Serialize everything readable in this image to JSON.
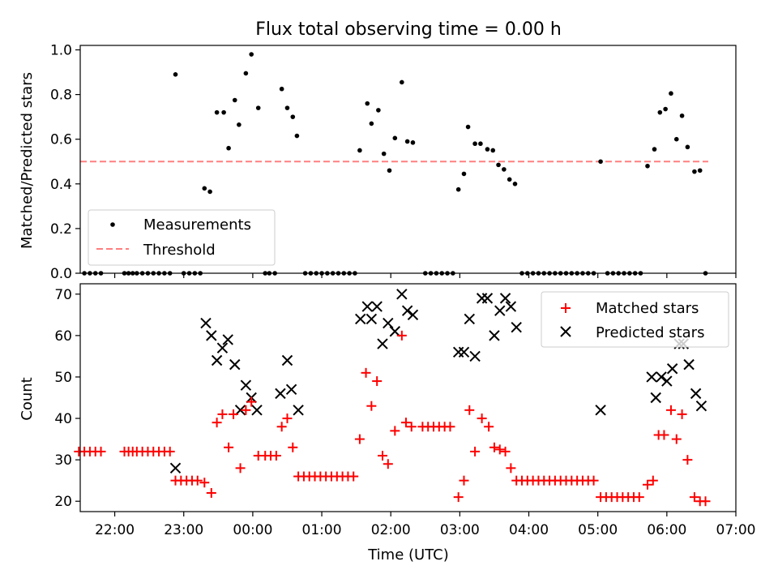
{
  "title": "Flux total observing time = 0.00 h",
  "chart_data": [
    {
      "type": "scatter",
      "ylabel": "Matched/Predicted stars",
      "ylim": [
        0,
        1.02
      ],
      "yticks": [
        "0.0",
        "0.2",
        "0.4",
        "0.6",
        "0.8",
        "1.0"
      ],
      "ytick_values": [
        0,
        0.2,
        0.4,
        0.6,
        0.8,
        1.0
      ],
      "xlim": [
        -2.5,
        7.0
      ],
      "xaxis": "hours relative to 00:00 UTC",
      "legend_position": "lower-left",
      "legend": {
        "measurements": "Measurements",
        "threshold": "Threshold"
      },
      "colors": {
        "measurements": "#000000",
        "threshold": "#ff7f7f"
      },
      "threshold": {
        "value": 0.5,
        "x_range": [
          -2.5,
          6.6
        ]
      },
      "series": [
        {
          "name": "Measurements",
          "points": [
            [
              -2.52,
              0
            ],
            [
              -2.44,
              0
            ],
            [
              -2.36,
              0
            ],
            [
              -2.28,
              0
            ],
            [
              -2.2,
              0
            ],
            [
              -1.86,
              0
            ],
            [
              -1.8,
              0
            ],
            [
              -1.74,
              0
            ],
            [
              -1.68,
              0
            ],
            [
              -1.6,
              0
            ],
            [
              -1.52,
              0
            ],
            [
              -1.44,
              0
            ],
            [
              -1.36,
              0
            ],
            [
              -1.28,
              0
            ],
            [
              -1.2,
              0
            ],
            [
              -1.12,
              0.89
            ],
            [
              -1.0,
              0
            ],
            [
              -0.92,
              0
            ],
            [
              -0.84,
              0
            ],
            [
              -0.76,
              0
            ],
            [
              -0.7,
              0.38
            ],
            [
              -0.62,
              0.365
            ],
            [
              -0.52,
              0.72
            ],
            [
              -0.42,
              0.72
            ],
            [
              -0.35,
              0.56
            ],
            [
              -0.26,
              0.775
            ],
            [
              -0.2,
              0.665
            ],
            [
              -0.1,
              0.895
            ],
            [
              -0.02,
              0.98
            ],
            [
              0.08,
              0.74
            ],
            [
              0.18,
              0
            ],
            [
              0.24,
              0
            ],
            [
              0.32,
              0
            ],
            [
              0.42,
              0.825
            ],
            [
              0.5,
              0.74
            ],
            [
              0.58,
              0.7
            ],
            [
              0.64,
              0.615
            ],
            [
              0.76,
              0
            ],
            [
              0.84,
              0
            ],
            [
              0.92,
              0
            ],
            [
              1.0,
              0
            ],
            [
              1.08,
              0
            ],
            [
              1.16,
              0
            ],
            [
              1.24,
              0
            ],
            [
              1.32,
              0
            ],
            [
              1.4,
              0
            ],
            [
              1.48,
              0
            ],
            [
              1.55,
              0.55
            ],
            [
              1.66,
              0.76
            ],
            [
              1.72,
              0.67
            ],
            [
              1.82,
              0.73
            ],
            [
              1.9,
              0.535
            ],
            [
              1.98,
              0.46
            ],
            [
              2.06,
              0.605
            ],
            [
              2.16,
              0.855
            ],
            [
              2.24,
              0.59
            ],
            [
              2.32,
              0.585
            ],
            [
              2.5,
              0
            ],
            [
              2.58,
              0
            ],
            [
              2.66,
              0
            ],
            [
              2.74,
              0
            ],
            [
              2.82,
              0
            ],
            [
              2.9,
              0
            ],
            [
              2.98,
              0.375
            ],
            [
              3.06,
              0.445
            ],
            [
              3.12,
              0.655
            ],
            [
              3.22,
              0.58
            ],
            [
              3.3,
              0.58
            ],
            [
              3.4,
              0.555
            ],
            [
              3.48,
              0.55
            ],
            [
              3.56,
              0.485
            ],
            [
              3.64,
              0.465
            ],
            [
              3.72,
              0.42
            ],
            [
              3.8,
              0.4
            ],
            [
              3.9,
              0
            ],
            [
              3.98,
              0
            ],
            [
              4.06,
              0
            ],
            [
              4.14,
              0
            ],
            [
              4.22,
              0
            ],
            [
              4.3,
              0
            ],
            [
              4.38,
              0
            ],
            [
              4.46,
              0
            ],
            [
              4.54,
              0
            ],
            [
              4.62,
              0
            ],
            [
              4.7,
              0
            ],
            [
              4.78,
              0
            ],
            [
              4.86,
              0
            ],
            [
              4.94,
              0
            ],
            [
              5.04,
              0.5
            ],
            [
              5.14,
              0
            ],
            [
              5.22,
              0
            ],
            [
              5.3,
              0
            ],
            [
              5.38,
              0
            ],
            [
              5.46,
              0
            ],
            [
              5.54,
              0
            ],
            [
              5.62,
              0
            ],
            [
              5.72,
              0.48
            ],
            [
              5.82,
              0.555
            ],
            [
              5.9,
              0.72
            ],
            [
              5.98,
              0.735
            ],
            [
              6.06,
              0.805
            ],
            [
              6.14,
              0.6
            ],
            [
              6.22,
              0.705
            ],
            [
              6.3,
              0.565
            ],
            [
              6.4,
              0.455
            ],
            [
              6.48,
              0.46
            ],
            [
              6.56,
              0
            ]
          ]
        }
      ]
    },
    {
      "type": "scatter",
      "xlabel": "Time (UTC)",
      "ylabel": "Count",
      "ylim": [
        17.5,
        72.5
      ],
      "yticks": [
        "20",
        "30",
        "40",
        "50",
        "60",
        "70"
      ],
      "ytick_values": [
        20,
        30,
        40,
        50,
        60,
        70
      ],
      "xlim": [
        -2.5,
        7.0
      ],
      "xticks": [
        "22:00",
        "23:00",
        "00:00",
        "01:00",
        "02:00",
        "03:00",
        "04:00",
        "05:00",
        "06:00",
        "07:00"
      ],
      "xtick_values": [
        -2,
        -1,
        0,
        1,
        2,
        3,
        4,
        5,
        6,
        7
      ],
      "legend_position": "upper-right",
      "colors": {
        "matched": "#ff0000",
        "predicted": "#000000"
      },
      "series": [
        {
          "name": "Matched stars",
          "marker": "plus",
          "points": [
            [
              -2.52,
              32
            ],
            [
              -2.44,
              32
            ],
            [
              -2.36,
              32
            ],
            [
              -2.28,
              32
            ],
            [
              -2.2,
              32
            ],
            [
              -1.86,
              32
            ],
            [
              -1.8,
              32
            ],
            [
              -1.74,
              32
            ],
            [
              -1.68,
              32
            ],
            [
              -1.6,
              32
            ],
            [
              -1.52,
              32
            ],
            [
              -1.44,
              32
            ],
            [
              -1.36,
              32
            ],
            [
              -1.28,
              32
            ],
            [
              -1.2,
              32
            ],
            [
              -1.12,
              25
            ],
            [
              -1.04,
              25
            ],
            [
              -0.96,
              25
            ],
            [
              -0.88,
              25
            ],
            [
              -0.8,
              25
            ],
            [
              -0.7,
              24.5
            ],
            [
              -0.6,
              22
            ],
            [
              -0.52,
              39
            ],
            [
              -0.44,
              41
            ],
            [
              -0.35,
              33
            ],
            [
              -0.28,
              41
            ],
            [
              -0.18,
              28
            ],
            [
              -0.1,
              42
            ],
            [
              -0.02,
              44
            ],
            [
              0.08,
              31
            ],
            [
              0.18,
              31
            ],
            [
              0.26,
              31
            ],
            [
              0.34,
              31
            ],
            [
              0.42,
              38
            ],
            [
              0.5,
              40
            ],
            [
              0.58,
              33
            ],
            [
              0.66,
              26
            ],
            [
              0.74,
              26
            ],
            [
              0.82,
              26
            ],
            [
              0.9,
              26
            ],
            [
              0.98,
              26
            ],
            [
              1.06,
              26
            ],
            [
              1.14,
              26
            ],
            [
              1.22,
              26
            ],
            [
              1.3,
              26
            ],
            [
              1.38,
              26
            ],
            [
              1.46,
              26
            ],
            [
              1.55,
              35
            ],
            [
              1.64,
              51
            ],
            [
              1.72,
              43
            ],
            [
              1.8,
              49
            ],
            [
              1.88,
              31
            ],
            [
              1.96,
              29
            ],
            [
              2.06,
              37
            ],
            [
              2.16,
              60
            ],
            [
              2.22,
              39
            ],
            [
              2.3,
              38
            ],
            [
              2.46,
              38
            ],
            [
              2.54,
              38
            ],
            [
              2.62,
              38
            ],
            [
              2.7,
              38
            ],
            [
              2.78,
              38
            ],
            [
              2.86,
              38
            ],
            [
              2.98,
              21
            ],
            [
              3.06,
              25
            ],
            [
              3.14,
              42
            ],
            [
              3.22,
              32
            ],
            [
              3.32,
              40
            ],
            [
              3.42,
              38
            ],
            [
              3.5,
              33
            ],
            [
              3.58,
              32.5
            ],
            [
              3.66,
              32
            ],
            [
              3.74,
              28
            ],
            [
              3.82,
              25
            ],
            [
              3.9,
              25
            ],
            [
              3.98,
              25
            ],
            [
              4.06,
              25
            ],
            [
              4.14,
              25
            ],
            [
              4.22,
              25
            ],
            [
              4.3,
              25
            ],
            [
              4.38,
              25
            ],
            [
              4.46,
              25
            ],
            [
              4.54,
              25
            ],
            [
              4.62,
              25
            ],
            [
              4.7,
              25
            ],
            [
              4.78,
              25
            ],
            [
              4.86,
              25
            ],
            [
              4.94,
              25
            ],
            [
              5.04,
              21
            ],
            [
              5.12,
              21
            ],
            [
              5.2,
              21
            ],
            [
              5.28,
              21
            ],
            [
              5.36,
              21
            ],
            [
              5.44,
              21
            ],
            [
              5.52,
              21
            ],
            [
              5.6,
              21
            ],
            [
              5.72,
              24
            ],
            [
              5.8,
              25
            ],
            [
              5.88,
              36
            ],
            [
              5.96,
              36
            ],
            [
              6.06,
              42
            ],
            [
              6.14,
              35
            ],
            [
              6.22,
              41
            ],
            [
              6.3,
              30
            ],
            [
              6.4,
              21
            ],
            [
              6.48,
              20
            ],
            [
              6.56,
              20
            ]
          ]
        },
        {
          "name": "Predicted stars",
          "marker": "x",
          "points": [
            [
              -1.12,
              28
            ],
            [
              -0.68,
              63
            ],
            [
              -0.6,
              60
            ],
            [
              -0.52,
              54
            ],
            [
              -0.44,
              57
            ],
            [
              -0.36,
              59
            ],
            [
              -0.26,
              53
            ],
            [
              -0.18,
              42
            ],
            [
              -0.1,
              48
            ],
            [
              -0.02,
              45
            ],
            [
              0.06,
              42
            ],
            [
              0.4,
              46
            ],
            [
              0.5,
              54
            ],
            [
              0.56,
              47
            ],
            [
              0.66,
              42
            ],
            [
              1.56,
              64
            ],
            [
              1.66,
              67
            ],
            [
              1.72,
              64
            ],
            [
              1.8,
              67
            ],
            [
              1.88,
              58
            ],
            [
              1.96,
              63
            ],
            [
              2.06,
              61
            ],
            [
              2.16,
              70
            ],
            [
              2.24,
              66
            ],
            [
              2.32,
              65
            ],
            [
              2.98,
              56
            ],
            [
              3.06,
              56
            ],
            [
              3.14,
              64
            ],
            [
              3.22,
              55
            ],
            [
              3.32,
              69
            ],
            [
              3.4,
              69
            ],
            [
              3.5,
              60
            ],
            [
              3.58,
              66
            ],
            [
              3.66,
              69
            ],
            [
              3.74,
              67
            ],
            [
              3.82,
              62
            ],
            [
              5.04,
              42
            ],
            [
              5.78,
              50
            ],
            [
              5.84,
              45
            ],
            [
              5.92,
              50
            ],
            [
              6.0,
              49
            ],
            [
              6.08,
              52
            ],
            [
              6.18,
              58
            ],
            [
              6.24,
              58
            ],
            [
              6.32,
              53
            ],
            [
              6.42,
              46
            ],
            [
              6.5,
              43
            ]
          ]
        }
      ]
    }
  ]
}
